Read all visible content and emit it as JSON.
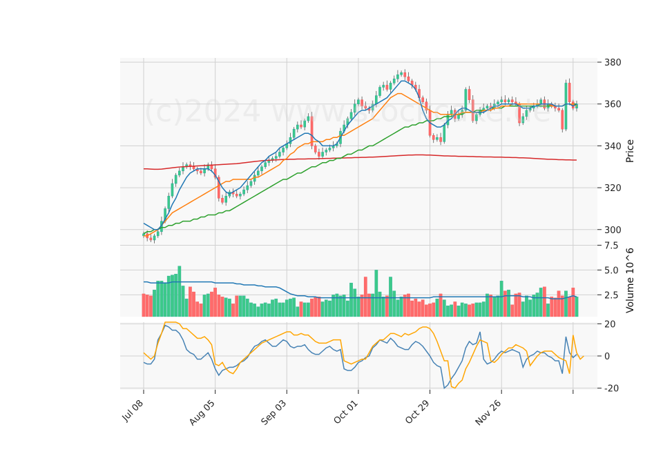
{
  "watermark": "(c)2024 www.stockcake.de",
  "colors": {
    "up": "#26a69a",
    "up_fill": "#3cc98a",
    "down": "#ef5350",
    "down_fill": "#ff6b6b",
    "ma_fast": "#1f77b4",
    "ma_mid": "#ff7f0e",
    "ma_slow": "#2ca02c",
    "ma_long": "#d62728",
    "osc_line": "#4682b4",
    "osc_signal": "#ffa500",
    "panel_bg": "#f8f8f8",
    "grid": "#d0d0d0"
  },
  "chart_data": [
    {
      "type": "candlestick",
      "panel": "price",
      "ylabel": "Price",
      "ylim": [
        293,
        382
      ],
      "yticks": [
        300,
        320,
        340,
        360,
        380
      ],
      "x_ticks": [
        {
          "index": 0,
          "label": "Jul 08"
        },
        {
          "index": 20,
          "label": "Aug 05"
        },
        {
          "index": 40,
          "label": "Sep 03"
        },
        {
          "index": 60,
          "label": "Oct 01"
        },
        {
          "index": 80,
          "label": "Oct 29"
        },
        {
          "index": 100,
          "label": "Nov 26"
        },
        {
          "index": 120,
          "label": ""
        }
      ],
      "close": [
        298,
        296,
        295,
        297,
        299,
        304,
        310,
        316,
        322,
        326,
        328,
        330,
        331,
        330,
        329,
        328,
        327,
        329,
        331,
        329,
        325,
        315,
        313,
        316,
        318,
        317,
        316,
        317,
        319,
        321,
        323,
        326,
        328,
        330,
        332,
        333,
        334,
        335,
        337,
        339,
        341,
        344,
        348,
        350,
        349,
        352,
        354,
        340,
        337,
        335,
        337,
        338,
        339,
        340,
        341,
        347,
        350,
        353,
        356,
        360,
        362,
        359,
        358,
        357,
        360,
        364,
        368,
        369,
        367,
        370,
        372,
        374,
        375,
        373,
        371,
        369,
        367,
        363,
        361,
        357,
        345,
        343,
        344,
        342,
        350,
        355,
        357,
        353,
        355,
        357,
        367,
        362,
        352,
        355,
        357,
        358,
        359,
        358,
        360,
        361,
        362,
        361,
        362,
        361,
        360,
        351,
        354,
        357,
        358,
        359,
        360,
        362,
        358,
        360,
        359,
        358,
        357,
        348,
        370,
        361,
        358,
        360
      ],
      "ma_fast": [
        303,
        302,
        301,
        300,
        300,
        302,
        305,
        308,
        312,
        315,
        319,
        322,
        325,
        327,
        328,
        329,
        329,
        329,
        329,
        328,
        326,
        323,
        320,
        318,
        317,
        318,
        319,
        320,
        322,
        324,
        326,
        328,
        330,
        332,
        333,
        335,
        336,
        337,
        339,
        340,
        341,
        342,
        343,
        344,
        345,
        346,
        346,
        345,
        343,
        342,
        340,
        340,
        340,
        340,
        341,
        344,
        347,
        350,
        352,
        354,
        356,
        357,
        357,
        358,
        359,
        360,
        361,
        362,
        363,
        365,
        367,
        369,
        371,
        371,
        370,
        369,
        367,
        363,
        357,
        353,
        351,
        350,
        349,
        349,
        350,
        352,
        353,
        355,
        357,
        358,
        358,
        357,
        356,
        356,
        356,
        356,
        357,
        358,
        359,
        359,
        360,
        360,
        360,
        360,
        360,
        359,
        358,
        358,
        358,
        359,
        359,
        360,
        360,
        360,
        360,
        359,
        359,
        359,
        360,
        360,
        359,
        360
      ],
      "ma_mid": [
        297,
        297,
        298,
        299,
        300,
        302,
        304,
        306,
        308,
        309,
        310,
        311,
        312,
        313,
        314,
        315,
        316,
        317,
        318,
        319,
        320,
        321,
        322,
        323,
        323,
        324,
        324,
        324,
        324,
        324,
        324,
        325,
        325,
        326,
        327,
        328,
        329,
        330,
        331,
        333,
        334,
        336,
        337,
        339,
        340,
        341,
        341,
        342,
        342,
        342,
        342,
        343,
        343,
        344,
        344,
        345,
        345,
        346,
        347,
        348,
        349,
        350,
        351,
        352,
        353,
        355,
        357,
        359,
        361,
        363,
        364,
        365,
        365,
        364,
        363,
        362,
        361,
        360,
        359,
        358,
        357,
        356,
        356,
        355,
        355,
        355,
        355,
        355,
        355,
        356,
        356,
        356,
        356,
        356,
        356,
        357,
        357,
        357,
        358,
        358,
        359,
        359,
        359,
        360,
        360,
        360,
        360,
        360,
        360,
        360,
        360,
        360,
        360,
        360,
        359,
        359,
        359,
        359,
        360,
        360,
        360,
        359
      ],
      "ma_slow": [
        298,
        299,
        299,
        300,
        300,
        301,
        301,
        302,
        302,
        303,
        303,
        304,
        304,
        304,
        305,
        305,
        306,
        306,
        307,
        307,
        307,
        308,
        308,
        309,
        309,
        310,
        311,
        312,
        313,
        314,
        315,
        316,
        317,
        318,
        319,
        320,
        321,
        322,
        323,
        324,
        324,
        325,
        326,
        327,
        327,
        328,
        329,
        330,
        330,
        331,
        332,
        332,
        333,
        333,
        334,
        334,
        335,
        336,
        336,
        337,
        338,
        338,
        339,
        340,
        340,
        341,
        342,
        343,
        344,
        345,
        346,
        347,
        348,
        349,
        349,
        350,
        350,
        351,
        351,
        352,
        352,
        352,
        353,
        353,
        354,
        354,
        354,
        355,
        355,
        355,
        356,
        356,
        356,
        357,
        357,
        357,
        357,
        358,
        358,
        358,
        358,
        359,
        359,
        359,
        359,
        359,
        359,
        359,
        359,
        359,
        359,
        359,
        359,
        359,
        359,
        359,
        359,
        359,
        360,
        360,
        360,
        360
      ],
      "ma_long": [
        329.0,
        329.0,
        328.9,
        328.8,
        328.8,
        328.9,
        329.1,
        329.3,
        329.5,
        329.7,
        329.9,
        330.0,
        330.1,
        330.2,
        330.3,
        330.4,
        330.5,
        330.6,
        330.7,
        330.8,
        330.9,
        331.0,
        331.1,
        331.2,
        331.3,
        331.4,
        331.5,
        331.7,
        331.9,
        332.1,
        332.3,
        332.5,
        332.7,
        332.9,
        333.0,
        333.1,
        333.2,
        333.3,
        333.4,
        333.5,
        333.5,
        333.6,
        333.6,
        333.7,
        333.7,
        333.7,
        333.8,
        333.8,
        333.8,
        333.9,
        333.9,
        334.0,
        334.0,
        334.1,
        334.1,
        334.2,
        334.2,
        334.3,
        334.3,
        334.4,
        334.4,
        334.5,
        334.5,
        334.6,
        334.6,
        334.7,
        334.8,
        334.9,
        335.0,
        335.1,
        335.2,
        335.3,
        335.4,
        335.5,
        335.6,
        335.6,
        335.7,
        335.7,
        335.7,
        335.6,
        335.6,
        335.5,
        335.4,
        335.3,
        335.2,
        335.2,
        335.1,
        335.1,
        335.0,
        335.0,
        335.0,
        334.9,
        334.9,
        334.8,
        334.8,
        334.7,
        334.7,
        334.7,
        334.6,
        334.6,
        334.6,
        334.5,
        334.5,
        334.4,
        334.4,
        334.3,
        334.3,
        334.2,
        334.1,
        334.0,
        333.9,
        333.8,
        333.7,
        333.6,
        333.6,
        333.5,
        333.4,
        333.4,
        333.3,
        333.3,
        333.2,
        333.2
      ]
    },
    {
      "type": "bar",
      "panel": "volume",
      "ylabel": "Volume  10^6",
      "ylim": [
        0.3,
        7.6
      ],
      "yticks": [
        2.5,
        5.0,
        7.5
      ],
      "values": [
        2.6,
        2.5,
        2.4,
        3.0,
        3.9,
        3.9,
        3.7,
        4.4,
        4.5,
        4.6,
        5.4,
        3.4,
        2.1,
        3.3,
        2.8,
        1.8,
        1.6,
        2.5,
        2.6,
        2.8,
        3.2,
        2.5,
        2.3,
        2.2,
        2.1,
        1.6,
        2.4,
        2.4,
        2.4,
        2.1,
        1.7,
        1.6,
        1.3,
        1.6,
        1.7,
        1.6,
        2.0,
        2.1,
        1.7,
        1.7,
        2.0,
        2.1,
        2.2,
        1.3,
        1.8,
        1.7,
        1.7,
        2.1,
        2.3,
        2.3,
        1.8,
        2.0,
        1.9,
        2.5,
        2.6,
        2.4,
        2.5,
        1.9,
        3.7,
        3.1,
        2.3,
        2.5,
        4.3,
        2.6,
        2.6,
        5.0,
        2.8,
        2.3,
        2.4,
        4.3,
        2.9,
        2.0,
        2.3,
        2.5,
        2.6,
        1.9,
        2.1,
        1.8,
        2.0,
        1.5,
        1.6,
        1.7,
        2.1,
        2.6,
        2.0,
        1.4,
        1.5,
        1.8,
        1.4,
        1.7,
        1.6,
        1.5,
        1.6,
        1.7,
        1.7,
        1.8,
        2.6,
        2.5,
        2.3,
        2.4,
        3.9,
        2.9,
        3.0,
        1.5,
        2.6,
        2.7,
        1.8,
        2.4,
        2.0,
        2.5,
        2.7,
        3.2,
        3.3,
        1.6,
        2.3,
        2.2,
        2.9,
        2.4,
        2.9,
        2.3,
        3.2,
        2.3
      ],
      "ma": [
        3.8,
        3.8,
        3.7,
        3.7,
        3.7,
        3.7,
        3.7,
        3.7,
        3.8,
        3.8,
        3.8,
        3.8,
        3.8,
        3.8,
        3.8,
        3.8,
        3.8,
        3.8,
        3.8,
        3.8,
        3.7,
        3.7,
        3.7,
        3.7,
        3.7,
        3.7,
        3.6,
        3.6,
        3.5,
        3.5,
        3.5,
        3.5,
        3.4,
        3.4,
        3.3,
        3.3,
        3.3,
        3.3,
        3.2,
        3.0,
        2.8,
        2.6,
        2.5,
        2.4,
        2.4,
        2.4,
        2.3,
        2.3,
        2.3,
        2.2,
        2.2,
        2.2,
        2.2,
        2.2,
        2.2,
        2.2,
        2.2,
        2.2,
        2.2,
        2.2,
        2.2,
        2.2,
        2.2,
        2.2,
        2.2,
        2.2,
        2.2,
        2.2,
        2.2,
        2.2,
        2.2,
        2.2,
        2.2,
        2.2,
        2.2,
        2.2,
        2.2,
        2.2,
        2.2,
        2.2,
        2.2,
        2.3,
        2.3,
        2.3,
        2.3,
        2.3,
        2.3,
        2.3,
        2.3,
        2.3,
        2.3,
        2.3,
        2.3,
        2.3,
        2.3,
        2.3,
        2.3,
        2.3,
        2.3,
        2.3,
        2.3,
        2.4,
        2.4,
        2.4,
        2.4,
        2.4,
        2.3,
        2.3,
        2.3,
        2.2,
        2.2,
        2.2,
        2.2,
        2.2,
        2.1,
        2.1,
        2.1,
        2.1,
        2.2,
        2.3,
        2.4,
        2.3
      ]
    },
    {
      "type": "line",
      "panel": "oscillator",
      "ylim": [
        -21,
        21
      ],
      "yticks": [
        -20,
        0,
        20
      ],
      "series": [
        {
          "values": [
            -4,
            -5,
            -5,
            -2,
            10,
            14,
            19,
            18,
            16,
            16,
            14,
            10,
            4,
            2,
            1,
            -2,
            -2,
            0,
            2,
            -2,
            -8,
            -12,
            -9,
            -8,
            -7,
            -7,
            -6,
            -4,
            -3,
            -1,
            3,
            6,
            7,
            9,
            10,
            8,
            6,
            6,
            8,
            10,
            9,
            6,
            5,
            6,
            6,
            7,
            4,
            2,
            1,
            1,
            3,
            5,
            6,
            4,
            3,
            4,
            -8,
            -9,
            -9,
            -7,
            -4,
            -3,
            -1,
            0,
            5,
            7,
            10,
            9,
            8,
            11,
            9,
            6,
            5,
            4,
            4,
            7,
            9,
            8,
            6,
            3,
            0,
            -4,
            -6,
            -7,
            -20,
            -18,
            -14,
            -11,
            -7,
            -3,
            5,
            9,
            7,
            8,
            15,
            -2,
            -5,
            -4,
            -2,
            1,
            3,
            2,
            3,
            4,
            3,
            2,
            -7,
            -2,
            0,
            1,
            3,
            2,
            2,
            0,
            -1,
            -3,
            -3,
            -11,
            12,
            2,
            -1,
            1
          ],
          "color_key": "osc_line"
        },
        {
          "values": [
            2,
            0,
            -2,
            0,
            8,
            14,
            21,
            21,
            21,
            21,
            20,
            17,
            17,
            15,
            13,
            11,
            11,
            12,
            10,
            7,
            -5,
            -6,
            -4,
            -8,
            -10,
            -11,
            -8,
            -4,
            -2,
            0,
            2,
            4,
            6,
            8,
            9,
            10,
            11,
            12,
            13,
            14,
            15,
            15,
            13,
            13,
            14,
            13,
            13,
            11,
            9,
            8,
            8,
            8,
            9,
            10,
            10,
            10,
            -3,
            -4,
            -5,
            -4,
            -3,
            -2,
            -2,
            2,
            6,
            8,
            10,
            10,
            12,
            14,
            14,
            13,
            12,
            14,
            13,
            14,
            15,
            17,
            18,
            18,
            17,
            14,
            9,
            3,
            -3,
            -3,
            -19,
            -20,
            -17,
            -15,
            -8,
            -4,
            1,
            6,
            10,
            9,
            8,
            -3,
            -4,
            -2,
            1,
            3,
            5,
            5,
            7,
            6,
            5,
            3,
            -6,
            -3,
            0,
            2,
            3,
            3,
            3,
            1,
            -1,
            -2,
            -3,
            -11,
            13,
            2,
            -2,
            0
          ],
          "color_key": "osc_signal"
        }
      ]
    }
  ]
}
